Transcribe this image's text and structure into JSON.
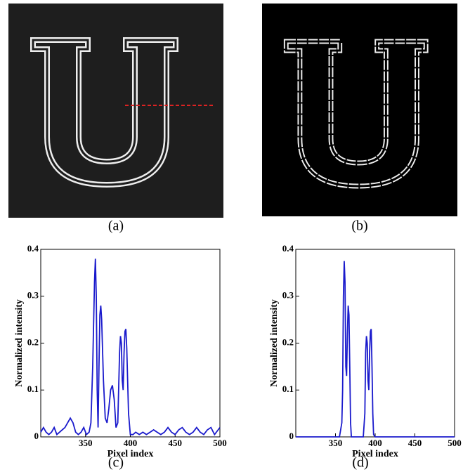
{
  "panel_labels": [
    "(a)",
    "(b)",
    "(c)",
    "(d)"
  ],
  "chart_data": [
    {
      "type": "line",
      "xlabel": "Pixel index",
      "ylabel": "Normalized intensity",
      "color": "#1a1acc",
      "xlim": [
        300,
        500
      ],
      "ylim": [
        0,
        0.4
      ],
      "xticks": [
        350,
        400,
        450,
        500
      ],
      "yticks": [
        0,
        0.1,
        0.2,
        0.3,
        0.4
      ],
      "x": [
        300,
        303,
        306,
        309,
        312,
        315,
        318,
        321,
        324,
        327,
        330,
        333,
        336,
        339,
        342,
        345,
        348,
        351,
        354,
        356,
        358,
        360,
        361,
        362,
        363,
        364,
        365,
        366,
        367,
        368,
        370,
        372,
        374,
        376,
        378,
        380,
        382,
        384,
        386,
        388,
        389,
        390,
        391,
        392,
        393,
        394,
        395,
        396,
        398,
        400,
        403,
        406,
        410,
        414,
        418,
        422,
        426,
        430,
        434,
        438,
        442,
        446,
        450,
        454,
        458,
        462,
        466,
        470,
        474,
        478,
        482,
        486,
        490,
        494,
        498,
        500
      ],
      "values": [
        0.01,
        0.02,
        0.01,
        0.005,
        0.01,
        0.02,
        0.005,
        0.01,
        0.015,
        0.02,
        0.03,
        0.04,
        0.03,
        0.01,
        0.005,
        0.01,
        0.02,
        0.005,
        0.01,
        0.03,
        0.15,
        0.33,
        0.38,
        0.3,
        0.1,
        0.02,
        0.15,
        0.26,
        0.28,
        0.25,
        0.12,
        0.04,
        0.03,
        0.06,
        0.1,
        0.11,
        0.08,
        0.02,
        0.03,
        0.18,
        0.215,
        0.2,
        0.12,
        0.1,
        0.18,
        0.225,
        0.23,
        0.19,
        0.05,
        0.005,
        0.005,
        0.01,
        0.005,
        0.01,
        0.005,
        0.01,
        0.015,
        0.01,
        0.005,
        0.01,
        0.02,
        0.01,
        0.005,
        0.015,
        0.02,
        0.01,
        0.005,
        0.01,
        0.02,
        0.01,
        0.005,
        0.015,
        0.02,
        0.005,
        0.015,
        0.02
      ]
    },
    {
      "type": "line",
      "xlabel": "Pixel index",
      "ylabel": "Normalized intensity",
      "color": "#1a1acc",
      "xlim": [
        300,
        500
      ],
      "ylim": [
        0,
        0.4
      ],
      "xticks": [
        350,
        400,
        450,
        500
      ],
      "yticks": [
        0,
        0.1,
        0.2,
        0.3,
        0.4
      ],
      "x": [
        300,
        355,
        357,
        358,
        359,
        360,
        361,
        362,
        363,
        364,
        365,
        366,
        367,
        368,
        369,
        370,
        385,
        387,
        388,
        389,
        390,
        391,
        392,
        393,
        394,
        395,
        396,
        397,
        398,
        400,
        500
      ],
      "values": [
        0,
        0,
        0.02,
        0.03,
        0.1,
        0.3,
        0.375,
        0.33,
        0.15,
        0.13,
        0.22,
        0.28,
        0.26,
        0.15,
        0.03,
        0,
        0,
        0.05,
        0.18,
        0.215,
        0.2,
        0.12,
        0.1,
        0.18,
        0.225,
        0.23,
        0.15,
        0.05,
        0.005,
        0,
        0
      ]
    }
  ]
}
